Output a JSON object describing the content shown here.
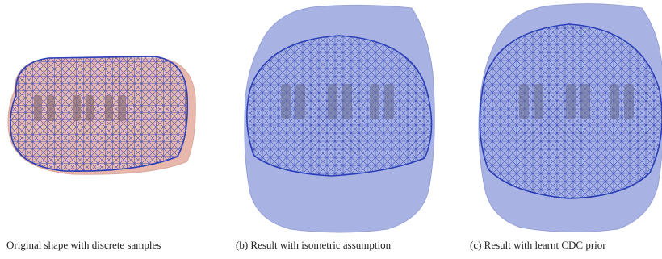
{
  "figure": {
    "panels": [
      {
        "caption": "Original shape with discrete samples",
        "surface_color": "#e9b8ad",
        "mesh_color": "#2b3fb8"
      },
      {
        "caption": "(b) Result with isometric assumption",
        "surface_color": "#a9b3e3",
        "mesh_color": "#2b3fb8"
      },
      {
        "caption": "(c) Result with learnt CDC prior",
        "surface_color": "#a9b3e3",
        "mesh_color": "#2b3fb8"
      }
    ]
  }
}
